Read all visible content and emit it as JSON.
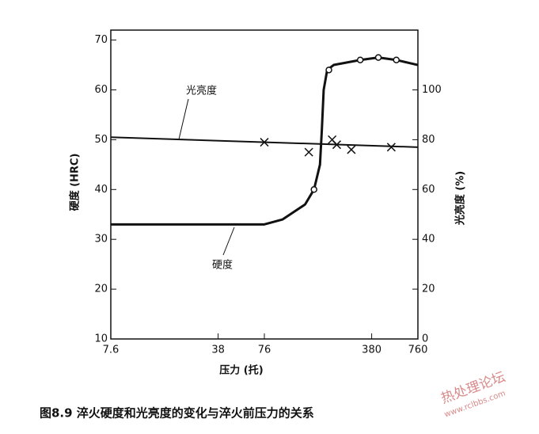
{
  "chart_data": {
    "type": "line",
    "xlabel": "压力 (托)",
    "ylabel": "硬度 (HRC)",
    "y2label": "光亮度 (%)",
    "caption": "图8.9   淬火硬度和光亮度的变化与淬火前压力的关系",
    "watermark": [
      "热处理论坛",
      "www.rclbbs.com"
    ],
    "logx": true,
    "xlim": [
      7.6,
      760
    ],
    "xticks": [
      7.6,
      38,
      76,
      380,
      760
    ],
    "ylim": [
      10,
      72
    ],
    "yticks": [
      10,
      20,
      30,
      40,
      50,
      60,
      70
    ],
    "y2lim": [
      0,
      124
    ],
    "y2ticks": [
      0,
      20,
      40,
      60,
      80,
      100
    ],
    "series": [
      {
        "name": "硬度",
        "color": "#111",
        "x": [
          7.6,
          76,
          100,
          140,
          160,
          175,
          180,
          185,
          195,
          215,
          320,
          420,
          550,
          760
        ],
        "values": [
          33,
          33,
          34,
          37,
          40,
          45,
          52,
          60,
          64,
          65,
          66,
          66.5,
          66,
          65
        ],
        "points": {
          "x": [
            160,
            200,
            320,
            420,
            550
          ],
          "values": [
            40,
            64,
            66,
            66.5,
            66
          ]
        }
      },
      {
        "name": "光亮度",
        "color": "#111",
        "axis": "y2",
        "x": [
          7.6,
          760
        ],
        "values": [
          81,
          77
        ],
        "points": {
          "x": [
            76,
            148,
            210,
            225,
            280,
            510
          ],
          "values": [
            79,
            75,
            80,
            78,
            76,
            77
          ]
        }
      }
    ]
  }
}
